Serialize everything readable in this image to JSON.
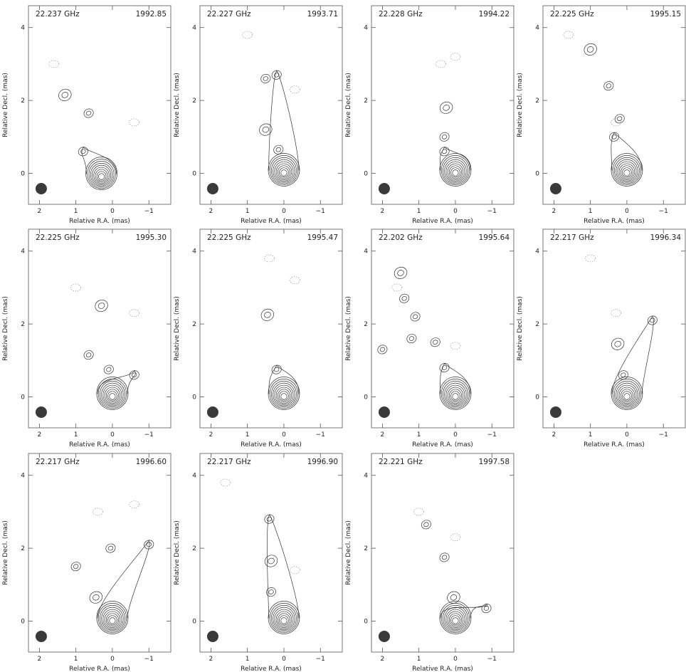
{
  "figure": {
    "xlabel": "Relative R.A. (mas)",
    "ylabel": "Relative Decl. (mas)",
    "x_ticks": [
      "2",
      "1",
      "0",
      "−1"
    ],
    "y_ticks": [
      "4",
      "2",
      "0"
    ],
    "panels": [
      {
        "freq": "22.237 GHz",
        "epoch": "1992.85"
      },
      {
        "freq": "22.227 GHz",
        "epoch": "1993.71"
      },
      {
        "freq": "22.228 GHz",
        "epoch": "1994.22"
      },
      {
        "freq": "22.225 GHz",
        "epoch": "1995.15"
      },
      {
        "freq": "22.225 GHz",
        "epoch": "1995.30"
      },
      {
        "freq": "22.225 GHz",
        "epoch": "1995.47"
      },
      {
        "freq": "22.202 GHz",
        "epoch": "1995.64"
      },
      {
        "freq": "22.217 GHz",
        "epoch": "1996.34"
      },
      {
        "freq": "22.217 GHz",
        "epoch": "1996.60"
      },
      {
        "freq": "22.217 GHz",
        "epoch": "1996.90"
      },
      {
        "freq": "22.221 GHz",
        "epoch": "1997.58"
      }
    ]
  },
  "colors": {
    "contour": "#333333",
    "negative": "#888888",
    "beam": "#3a3a3a",
    "frame": "#555555"
  },
  "chart_data": {
    "type": "contour",
    "x_axis": {
      "label": "Relative R.A. (mas)",
      "range": [
        2.3,
        -1.6
      ],
      "ticks": [
        2,
        1,
        0,
        -1
      ]
    },
    "y_axis": {
      "label": "Relative Decl. (mas)",
      "range": [
        -0.85,
        4.6
      ],
      "ticks": [
        0,
        2,
        4
      ]
    },
    "panels": [
      {
        "freq": "22.237 GHz",
        "epoch": "1992.85",
        "core": [
          0.3,
          -0.1
        ],
        "jet": [
          [
            1.3,
            2.15
          ],
          [
            0.65,
            1.65
          ],
          [
            0.8,
            0.6
          ]
        ]
      },
      {
        "freq": "22.227 GHz",
        "epoch": "1993.71",
        "core": [
          0.0,
          0.0
        ],
        "jet": [
          [
            0.5,
            1.2
          ],
          [
            0.15,
            0.65
          ],
          [
            0.5,
            2.6
          ],
          [
            0.2,
            2.7
          ]
        ]
      },
      {
        "freq": "22.228 GHz",
        "epoch": "1994.22",
        "core": [
          0.0,
          0.0
        ],
        "jet": [
          [
            0.25,
            1.8
          ],
          [
            0.3,
            1.0
          ],
          [
            0.3,
            0.6
          ]
        ]
      },
      {
        "freq": "22.225 GHz",
        "epoch": "1995.15",
        "core": [
          0.0,
          0.0
        ],
        "jet": [
          [
            1.0,
            3.4
          ],
          [
            0.5,
            2.4
          ],
          [
            0.2,
            1.5
          ],
          [
            0.35,
            1.0
          ]
        ]
      },
      {
        "freq": "22.225 GHz",
        "epoch": "1995.30",
        "core": [
          0.0,
          0.0
        ],
        "jet": [
          [
            0.3,
            2.5
          ],
          [
            0.65,
            1.15
          ],
          [
            0.1,
            0.75
          ],
          [
            -0.6,
            0.6
          ]
        ]
      },
      {
        "freq": "22.225 GHz",
        "epoch": "1995.47",
        "core": [
          0.0,
          0.0
        ],
        "jet": [
          [
            0.45,
            2.25
          ],
          [
            0.2,
            0.75
          ]
        ]
      },
      {
        "freq": "22.202 GHz",
        "epoch": "1995.64",
        "core": [
          0.0,
          0.0
        ],
        "jet": [
          [
            1.5,
            3.4
          ],
          [
            1.4,
            2.7
          ],
          [
            1.1,
            2.2
          ],
          [
            1.2,
            1.6
          ],
          [
            2.0,
            1.3
          ],
          [
            0.55,
            1.5
          ],
          [
            0.3,
            0.8
          ]
        ]
      },
      {
        "freq": "22.217 GHz",
        "epoch": "1996.34",
        "core": [
          0.0,
          0.0
        ],
        "jet": [
          [
            0.25,
            1.45
          ],
          [
            0.1,
            0.6
          ],
          [
            -0.7,
            2.1
          ]
        ]
      },
      {
        "freq": "22.217 GHz",
        "epoch": "1996.60",
        "core": [
          0.0,
          0.0
        ],
        "jet": [
          [
            0.45,
            0.65
          ],
          [
            0.05,
            2.0
          ],
          [
            1.0,
            1.5
          ],
          [
            -1.0,
            2.1
          ]
        ]
      },
      {
        "freq": "22.217 GHz",
        "epoch": "1996.90",
        "core": [
          0.0,
          0.0
        ],
        "jet": [
          [
            0.35,
            1.65
          ],
          [
            0.35,
            0.8
          ],
          [
            0.4,
            2.8
          ]
        ]
      },
      {
        "freq": "22.221 GHz",
        "epoch": "1997.58",
        "core": [
          0.0,
          0.0
        ],
        "jet": [
          [
            0.05,
            0.65
          ],
          [
            0.3,
            1.75
          ],
          [
            0.8,
            2.65
          ],
          [
            -0.85,
            0.35
          ]
        ]
      }
    ]
  }
}
